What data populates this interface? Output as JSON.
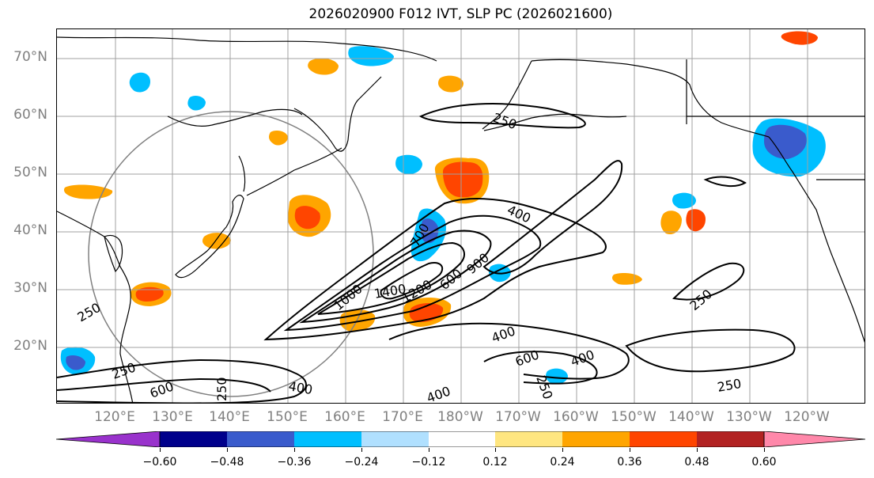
{
  "title": "2026020900 F012 IVT, SLP PC (2026021600)",
  "lat_labels": [
    "70°N",
    "60°N",
    "50°N",
    "40°N",
    "30°N",
    "20°N"
  ],
  "lon_labels": [
    "120°E",
    "130°E",
    "140°E",
    "150°E",
    "160°E",
    "170°E",
    "180°W",
    "170°W",
    "160°W",
    "150°W",
    "140°W",
    "130°W",
    "120°W"
  ],
  "contour_labels": [
    "250",
    "400",
    "700",
    "1400",
    "1000",
    "1200",
    "900",
    "600",
    "400",
    "600",
    "250",
    "400",
    "250",
    "250",
    "250",
    "250",
    "600",
    "400",
    "250",
    "400"
  ],
  "colorbar": {
    "ticks": [
      "−0.60",
      "−0.48",
      "−0.36",
      "−0.24",
      "−0.12",
      "0.12",
      "0.24",
      "0.36",
      "0.48",
      "0.60"
    ],
    "colors": [
      "#9932cc",
      "#00008b",
      "#3a5bcc",
      "#00bfff",
      "#b0e0ff",
      "#ffffff",
      "#ffe680",
      "#ffa500",
      "#ff4500",
      "#b22222",
      "#ff88aa"
    ]
  },
  "colors": {
    "land": "#000000",
    "grid": "#a0a0a0",
    "circle": "#808080",
    "contour": "#000000"
  }
}
